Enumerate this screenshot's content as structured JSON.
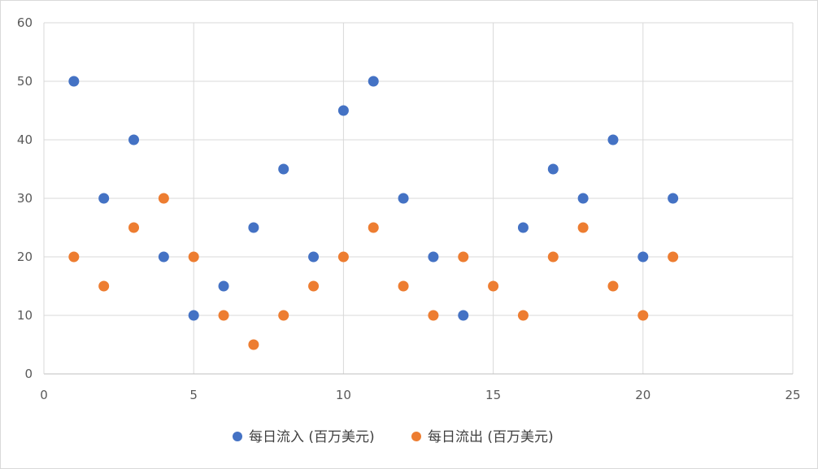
{
  "chart_data": {
    "type": "scatter",
    "title": "",
    "xlabel": "",
    "ylabel": "",
    "xlim": [
      0,
      25
    ],
    "ylim": [
      0,
      60
    ],
    "xticks": [
      0,
      5,
      10,
      15,
      20,
      25
    ],
    "yticks": [
      0,
      10,
      20,
      30,
      40,
      50,
      60
    ],
    "grid": true,
    "legend_position": "bottom",
    "series": [
      {
        "name": "每日流入 (百万美元)",
        "color": "#4472c4",
        "x": [
          1,
          2,
          3,
          4,
          5,
          6,
          7,
          8,
          9,
          10,
          11,
          12,
          13,
          14,
          15,
          16,
          17,
          18,
          19,
          20,
          21
        ],
        "y": [
          50,
          30,
          40,
          20,
          10,
          15,
          25,
          35,
          20,
          45,
          50,
          30,
          20,
          10,
          null,
          25,
          35,
          30,
          40,
          20,
          30
        ]
      },
      {
        "name": "每日流出 (百万美元)",
        "color": "#ed7d31",
        "x": [
          1,
          2,
          3,
          4,
          5,
          6,
          7,
          8,
          9,
          10,
          11,
          12,
          13,
          14,
          15,
          16,
          17,
          18,
          19,
          20,
          21
        ],
        "y": [
          20,
          15,
          25,
          30,
          20,
          10,
          5,
          10,
          15,
          20,
          25,
          15,
          10,
          20,
          15,
          10,
          20,
          25,
          15,
          10,
          20
        ]
      }
    ]
  }
}
